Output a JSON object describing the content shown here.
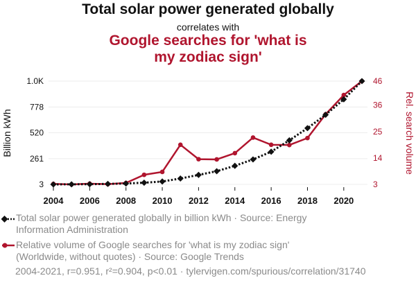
{
  "chart_data": {
    "type": "line",
    "title": "Total solar power generated globally",
    "subtitle": "correlates with",
    "title2": "Google searches for 'what is my zodiac sign'",
    "x": [
      2004,
      2005,
      2006,
      2007,
      2008,
      2009,
      2010,
      2011,
      2012,
      2013,
      2014,
      2015,
      2016,
      2017,
      2018,
      2019,
      2020,
      2021
    ],
    "x_ticks": [
      "2004",
      "2006",
      "2008",
      "2010",
      "2012",
      "2014",
      "2016",
      "2018",
      "2020"
    ],
    "xlim": [
      2004,
      2021
    ],
    "y_left": {
      "label": "Billion kWh",
      "ticks": [
        "3",
        "261",
        "520",
        "778",
        "1.0K"
      ],
      "tick_values": [
        3,
        261,
        520,
        778,
        1037
      ],
      "range": [
        3,
        1037
      ]
    },
    "y_right": {
      "label": "Rel. search volume",
      "ticks": [
        "3",
        "14",
        "25",
        "36",
        "46"
      ],
      "tick_values": [
        3,
        14,
        25,
        36,
        46
      ],
      "range": [
        3,
        46
      ]
    },
    "grid": true,
    "legend_placement": "bottom",
    "series": [
      {
        "name": "Total solar power generated globally in billion kWh",
        "axis": "left",
        "color": "#111111",
        "style": "dotted",
        "marker": "diamond",
        "values": [
          3,
          4,
          5,
          8,
          12,
          20,
          32,
          62,
          98,
          135,
          189,
          253,
          330,
          444,
          566,
          700,
          855,
          1037
        ]
      },
      {
        "name": "Relative volume of Google searches for 'what is my zodiac sign'",
        "axis": "right",
        "color": "#b0152e",
        "style": "solid",
        "marker": "circle",
        "values": [
          3.2,
          3,
          3.3,
          3.1,
          3.6,
          7,
          8.2,
          19.5,
          13.5,
          13.4,
          16,
          22.5,
          19.5,
          19.4,
          22.3,
          32.2,
          40.2,
          46
        ]
      }
    ]
  },
  "legend": {
    "item1_line1": "Total solar power generated globally in billion kWh · Source: Energy",
    "item1_line2": "Information Administration",
    "item2_line1": "Relative volume of Google searches for 'what is my zodiac sign'",
    "item2_line2": "(Worldwide, without quotes) · Source: Google Trends"
  },
  "footer": "2004-2021, r=0.951, r²=0.904, p<0.01 · tylervigen.com/spurious/correlation/31740"
}
